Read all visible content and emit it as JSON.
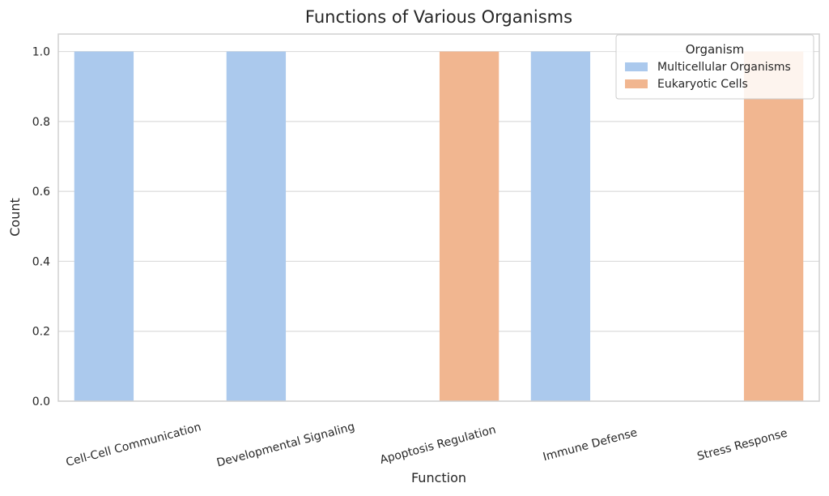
{
  "chart_data": {
    "type": "bar",
    "title": "Functions of Various Organisms",
    "xlabel": "Function",
    "ylabel": "Count",
    "categories": [
      "Cell-Cell Communication",
      "Developmental Signaling",
      "Apoptosis Regulation",
      "Immune Defense",
      "Stress Response"
    ],
    "series": [
      {
        "name": "Multicellular Organisms",
        "values": [
          1,
          1,
          0,
          1,
          0
        ],
        "color": "#abc9ed"
      },
      {
        "name": "Eukaryotic Cells",
        "values": [
          0,
          0,
          1,
          0,
          1
        ],
        "color": "#f1b690"
      }
    ],
    "ylim": [
      0,
      1.05
    ],
    "yticks": [
      "0.0",
      "0.2",
      "0.4",
      "0.6",
      "0.8",
      "1.0"
    ],
    "grid": true,
    "legend": {
      "title": "Organism",
      "position": "top-right"
    },
    "x_tick_rotation": "rotated"
  },
  "colors": {
    "grid": "#dcdcdc",
    "axes_frame": "#d0d0d0",
    "text": "#262626"
  }
}
